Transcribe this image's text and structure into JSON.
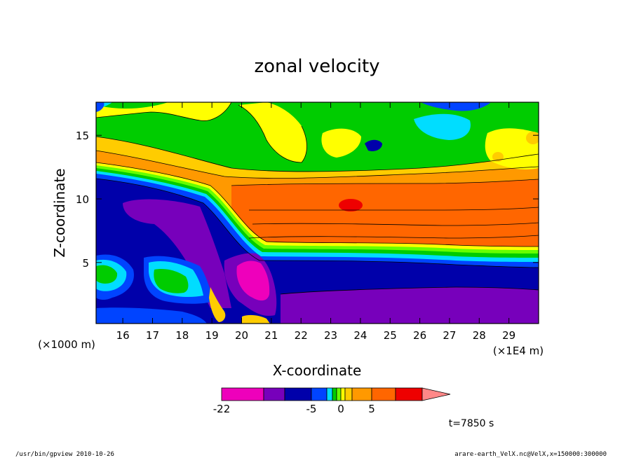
{
  "chart_data": {
    "type": "heatmap",
    "title": "zonal velocity",
    "xlabel": "X-coordinate",
    "ylabel": "Z-coordinate",
    "x_units": "(×1E4 m)",
    "y_units": "(×1000 m)",
    "xlim": [
      15.1,
      30
    ],
    "ylim": [
      0.2,
      17.6
    ],
    "x_ticks": [
      16,
      17,
      18,
      19,
      20,
      21,
      22,
      23,
      24,
      25,
      26,
      27,
      28,
      29
    ],
    "y_ticks": [
      5,
      10,
      15
    ],
    "x_tick_labels": [
      "16",
      "17",
      "18",
      "19",
      "20",
      "21",
      "22",
      "23",
      "24",
      "25",
      "26",
      "27",
      "28",
      "29"
    ],
    "y_tick_labels": [
      "5",
      "10",
      "15"
    ],
    "colorbar": {
      "levels": [
        -22,
        -15,
        -10,
        -5,
        -3,
        -2,
        -1,
        0,
        1,
        2,
        5,
        8,
        11
      ],
      "colors": [
        "#ee00bb",
        "#7700bb",
        "#0000aa",
        "#0044ff",
        "#00ddff",
        "#00cc00",
        "#66ff00",
        "#ffff00",
        "#ffcc00",
        "#ff9900",
        "#ff6600",
        "#ee0000",
        "#ff8888"
      ],
      "labels": [
        "-22",
        "-5",
        "0",
        "5"
      ],
      "label_values": [
        -22,
        -5,
        0,
        5
      ]
    },
    "time_label": "t=7850 s"
  },
  "footer": {
    "left": "/usr/bin/gpview   2010-10-26",
    "right": "arare-earth_VelX.nc@VelX,x=150000:300000"
  },
  "colors": {
    "background": "#ffffff",
    "frame": "#000000"
  }
}
